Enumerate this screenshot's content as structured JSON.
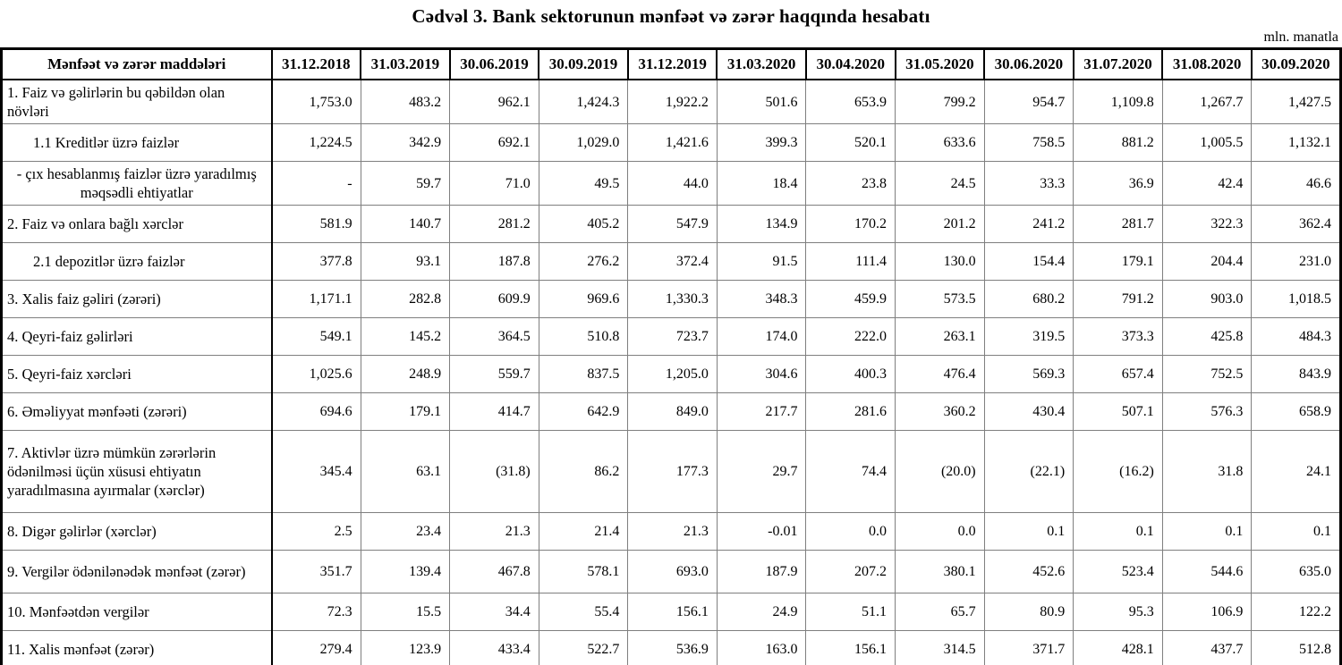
{
  "title": "Cədvəl 3. Bank sektorunun mənfəət və zərər haqqında hesabatı",
  "unit_note": "mln. manatla",
  "table": {
    "header": [
      "Mənfəət və zərər maddələri",
      "31.12.2018",
      "31.03.2019",
      "30.06.2019",
      "30.09.2019",
      "31.12.2019",
      "31.03.2020",
      "30.04.2020",
      "31.05.2020",
      "30.06.2020",
      "31.07.2020",
      "31.08.2020",
      "30.09.2020"
    ],
    "rows": [
      {
        "label": "1. Faiz və gəlirlərin bu qəbildən olan növləri",
        "style": "normal",
        "lines": 2,
        "values": [
          "1,753.0",
          "483.2",
          "962.1",
          "1,424.3",
          "1,922.2",
          "501.6",
          "653.9",
          "799.2",
          "954.7",
          "1,109.8",
          "1,267.7",
          "1,427.5"
        ]
      },
      {
        "label": "1.1 Kreditlər üzrə faizlər",
        "style": "indent",
        "lines": 1,
        "values": [
          "1,224.5",
          "342.9",
          "692.1",
          "1,029.0",
          "1,421.6",
          "399.3",
          "520.1",
          "633.6",
          "758.5",
          "881.2",
          "1,005.5",
          "1,132.1"
        ]
      },
      {
        "label": "-  çıx hesablanmış faizlər üzrə yaradılmış məqsədli ehtiyatlar",
        "style": "center",
        "lines": 2,
        "values": [
          "-",
          "59.7",
          "71.0",
          "49.5",
          "44.0",
          "18.4",
          "23.8",
          "24.5",
          "33.3",
          "36.9",
          "42.4",
          "46.6"
        ]
      },
      {
        "label": "2. Faiz və onlara bağlı xərclər",
        "style": "normal",
        "lines": 1,
        "values": [
          "581.9",
          "140.7",
          "281.2",
          "405.2",
          "547.9",
          "134.9",
          "170.2",
          "201.2",
          "241.2",
          "281.7",
          "322.3",
          "362.4"
        ]
      },
      {
        "label": "2.1 depozitlər üzrə faizlər",
        "style": "indent",
        "lines": 1,
        "values": [
          "377.8",
          "93.1",
          "187.8",
          "276.2",
          "372.4",
          "91.5",
          "111.4",
          "130.0",
          "154.4",
          "179.1",
          "204.4",
          "231.0"
        ]
      },
      {
        "label": "3. Xalis faiz gəliri (zərəri)",
        "style": "normal",
        "lines": 1,
        "values": [
          "1,171.1",
          "282.8",
          "609.9",
          "969.6",
          "1,330.3",
          "348.3",
          "459.9",
          "573.5",
          "680.2",
          "791.2",
          "903.0",
          "1,018.5"
        ]
      },
      {
        "label": "4. Qeyri-faiz gəlirləri",
        "style": "normal",
        "lines": 1,
        "values": [
          "549.1",
          "145.2",
          "364.5",
          "510.8",
          "723.7",
          "174.0",
          "222.0",
          "263.1",
          "319.5",
          "373.3",
          "425.8",
          "484.3"
        ]
      },
      {
        "label": "5. Qeyri-faiz xərcləri",
        "style": "normal",
        "lines": 1,
        "values": [
          "1,025.6",
          "248.9",
          "559.7",
          "837.5",
          "1,205.0",
          "304.6",
          "400.3",
          "476.4",
          "569.3",
          "657.4",
          "752.5",
          "843.9"
        ]
      },
      {
        "label": "6. Əməliyyat mənfəəti (zərəri)",
        "style": "normal",
        "lines": 1,
        "values": [
          "694.6",
          "179.1",
          "414.7",
          "642.9",
          "849.0",
          "217.7",
          "281.6",
          "360.2",
          "430.4",
          "507.1",
          "576.3",
          "658.9"
        ]
      },
      {
        "label": "7. Aktivlər üzrə mümkün zərərlərin ödənilməsi üçün xüsusi ehtiyatın yaradılmasına ayırmalar (xərclər)",
        "style": "normal",
        "lines": 3,
        "values": [
          "345.4",
          "63.1",
          "(31.8)",
          "86.2",
          "177.3",
          "29.7",
          "74.4",
          "(20.0)",
          "(22.1)",
          "(16.2)",
          "31.8",
          "24.1"
        ]
      },
      {
        "label": "8. Digər gəlirlər (xərclər)",
        "style": "normal",
        "lines": 1,
        "values": [
          "2.5",
          "23.4",
          "21.3",
          "21.4",
          "21.3",
          "-0.01",
          "0.0",
          "0.0",
          "0.1",
          "0.1",
          "0.1",
          "0.1"
        ]
      },
      {
        "label": "9. Vergilər ödənilənədək mənfəət (zərər)",
        "style": "normal",
        "lines": 2,
        "values": [
          "351.7",
          "139.4",
          "467.8",
          "578.1",
          "693.0",
          "187.9",
          "207.2",
          "380.1",
          "452.6",
          "523.4",
          "544.6",
          "635.0"
        ]
      },
      {
        "label": "10. Mənfəətdən vergilər",
        "style": "normal",
        "lines": 1,
        "values": [
          "72.3",
          "15.5",
          "34.4",
          "55.4",
          "156.1",
          "24.9",
          "51.1",
          "65.7",
          "80.9",
          "95.3",
          "106.9",
          "122.2"
        ]
      },
      {
        "label": "11. Xalis mənfəət (zərər)",
        "style": "normal",
        "lines": 1,
        "values": [
          "279.4",
          "123.9",
          "433.4",
          "522.7",
          "536.9",
          "163.0",
          "156.1",
          "314.5",
          "371.7",
          "428.1",
          "437.7",
          "512.8"
        ]
      }
    ]
  }
}
